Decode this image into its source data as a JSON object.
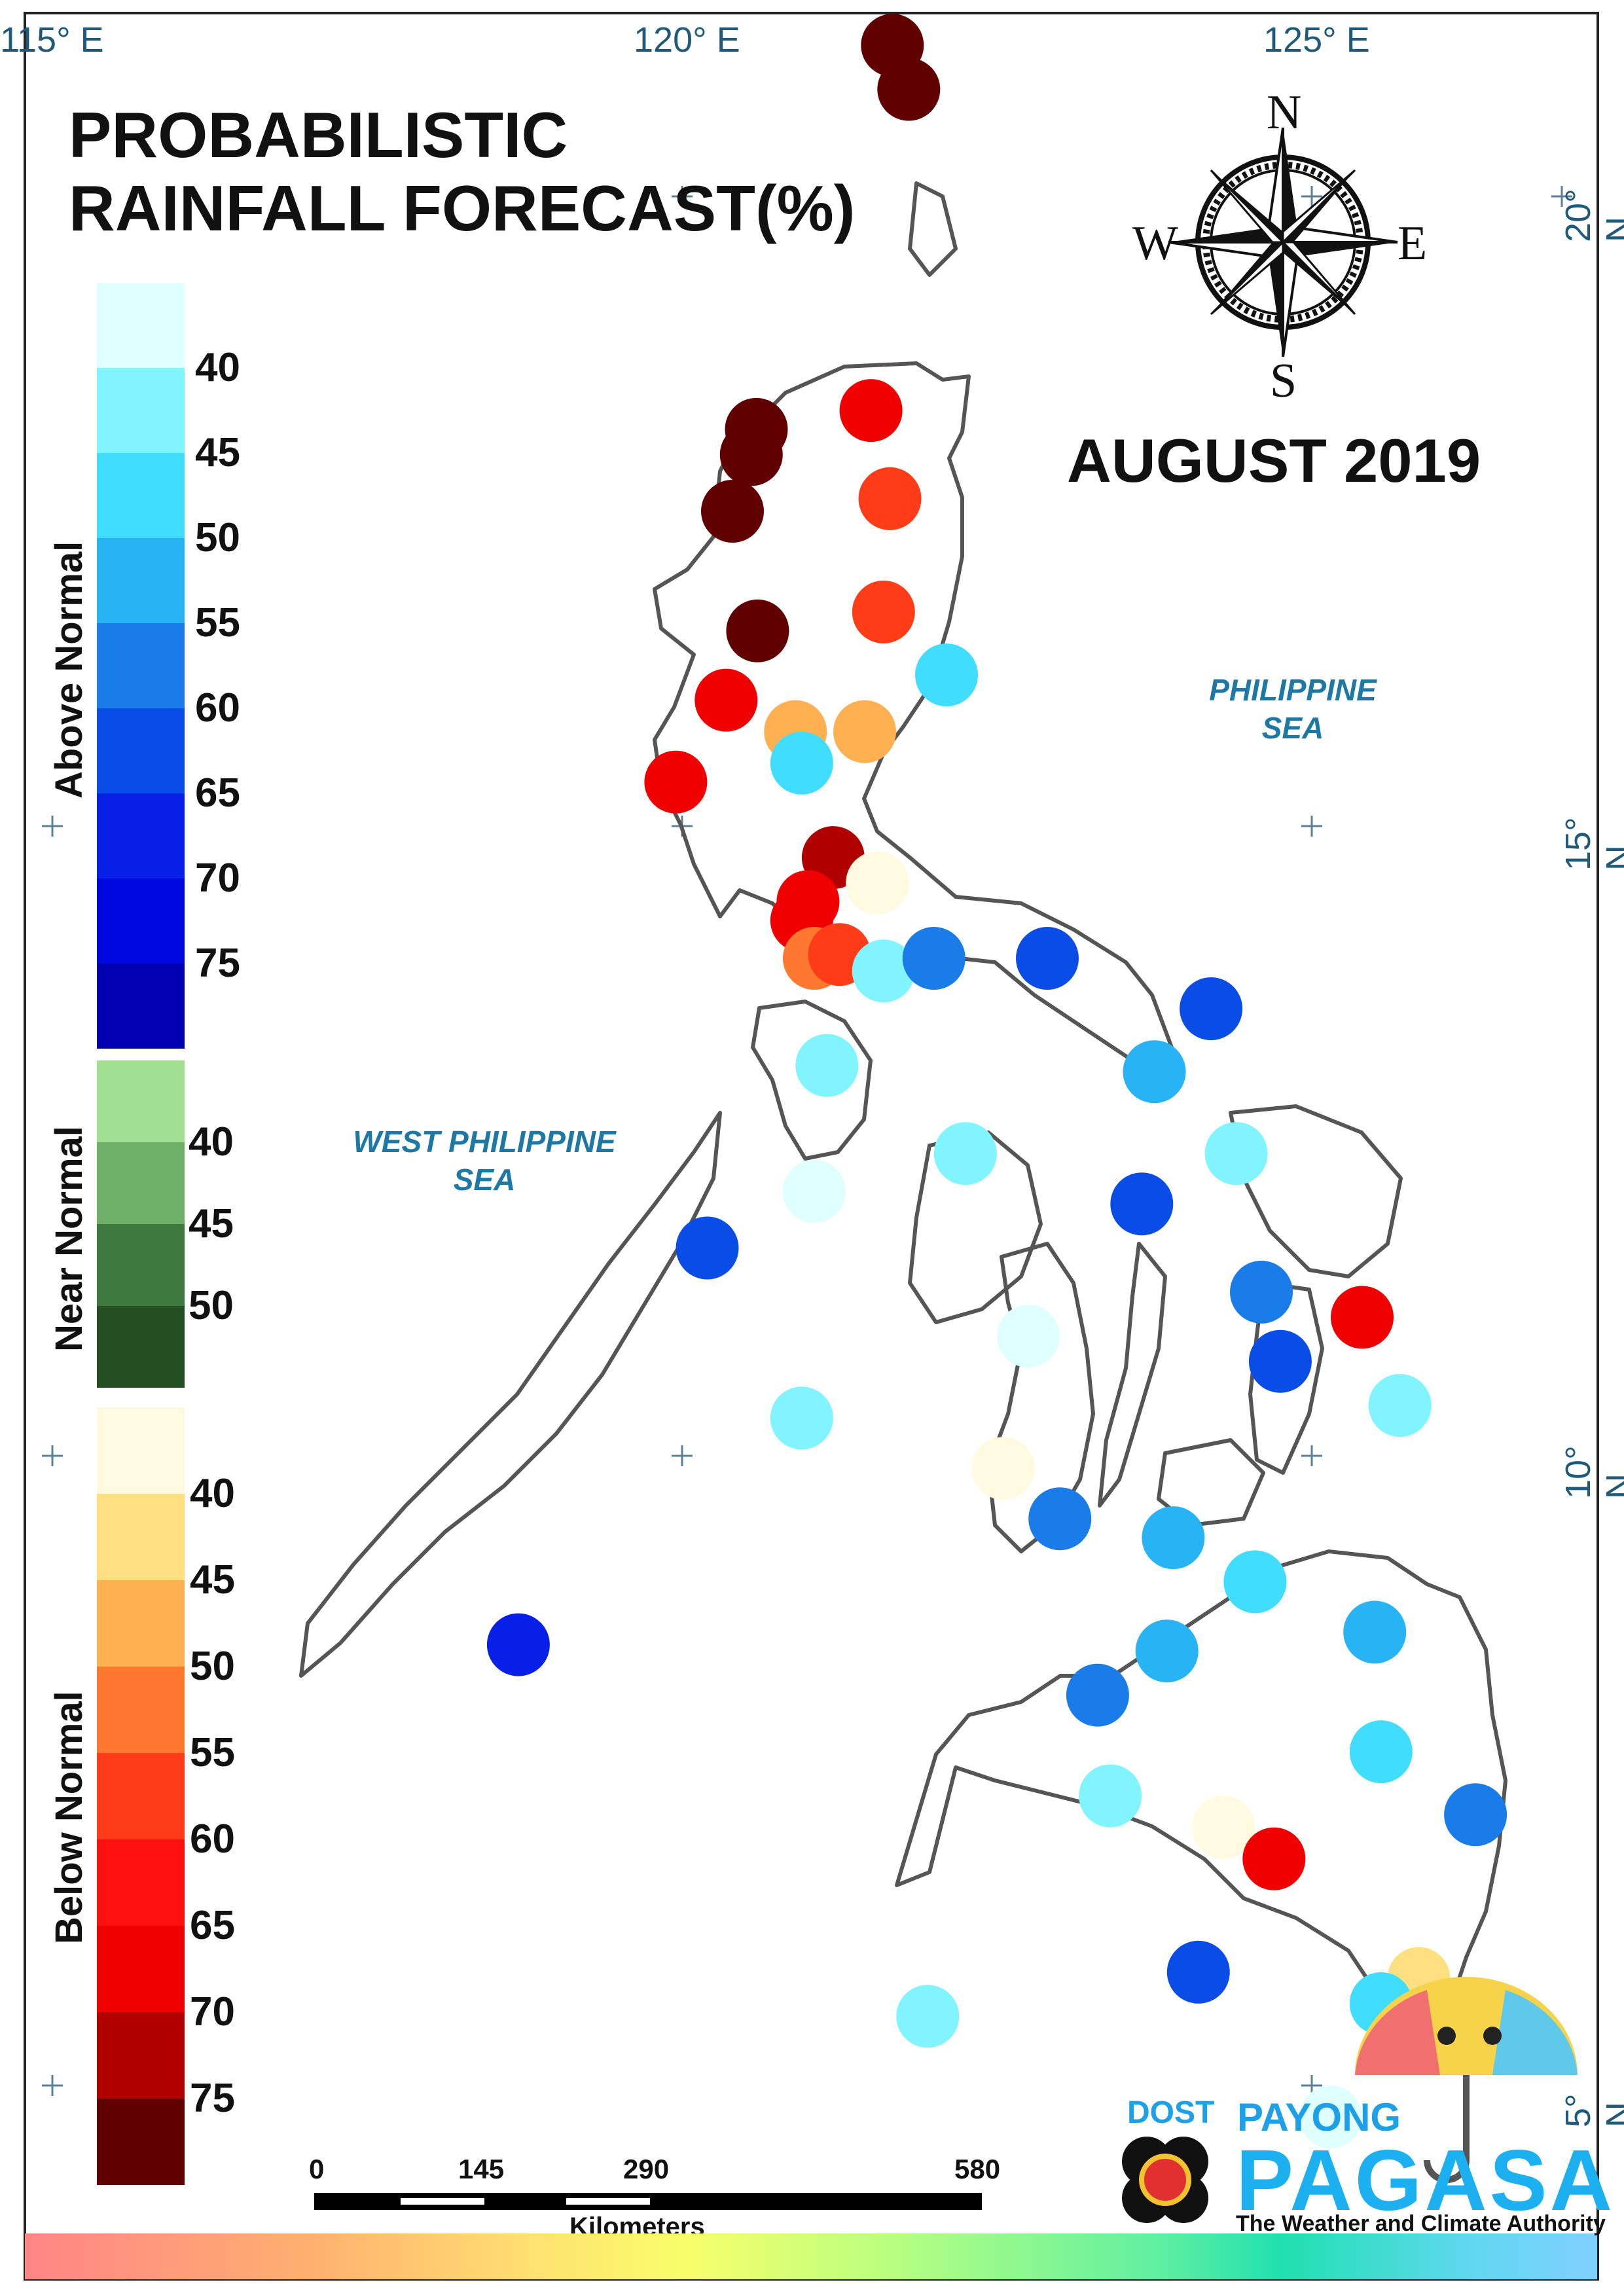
{
  "title": {
    "line1": "PROBABILISTIC",
    "line2": "RAINFALL FORECAST(%)"
  },
  "period": "AUGUST 2019",
  "longitude_labels": [
    "115° E",
    "120° E",
    "125° E"
  ],
  "latitude_labels": [
    "20° N",
    "15° N",
    "10° N",
    "5° N"
  ],
  "seas": {
    "philippine_sea": {
      "line1": "PHILIPPINE",
      "line2": "SEA"
    },
    "west_philippine_sea": {
      "line1": "WEST PHILIPPINE",
      "line2": "SEA"
    }
  },
  "compass": {
    "n": "N",
    "s": "S",
    "e": "E",
    "w": "W"
  },
  "legend": {
    "above": {
      "label": "Above Normal",
      "values": [
        "40",
        "45",
        "50",
        "55",
        "60",
        "65",
        "70",
        "75"
      ],
      "colors": [
        "#e0ffff",
        "#80f4ff",
        "#40ddff",
        "#28b4f4",
        "#1a7ce8",
        "#0a4ce6",
        "#0620e8",
        "#0008e0",
        "#0000b0"
      ]
    },
    "near": {
      "label": "Near Normal",
      "values": [
        "40",
        "45",
        "50"
      ],
      "colors": [
        "#a0e090",
        "#6eb068",
        "#3e7a40",
        "#224e22"
      ]
    },
    "below": {
      "label": "Below Normal",
      "values": [
        "40",
        "45",
        "50",
        "55",
        "60",
        "65",
        "70",
        "75"
      ],
      "colors": [
        "#fffae0",
        "#ffe080",
        "#ffb050",
        "#ff7830",
        "#ff3c18",
        "#ff1010",
        "#f00000",
        "#b00000",
        "#600000"
      ]
    }
  },
  "scale": {
    "ticks": [
      "0",
      "145",
      "290",
      "580"
    ],
    "caption": "Kilometers"
  },
  "logo": {
    "agency": "DOST",
    "brand_top": "PAYONG",
    "brand": "PAGASA",
    "tagline": "The Weather and Climate Authority"
  },
  "stations": [
    {
      "lon": 121.67,
      "lat": 21.2,
      "color": "#600000"
    },
    {
      "lon": 121.8,
      "lat": 20.85,
      "color": "#600000"
    },
    {
      "lon": 120.59,
      "lat": 18.15,
      "color": "#600000"
    },
    {
      "lon": 120.55,
      "lat": 17.95,
      "color": "#600000"
    },
    {
      "lon": 120.4,
      "lat": 17.5,
      "color": "#600000"
    },
    {
      "lon": 121.5,
      "lat": 18.3,
      "color": "#f00000"
    },
    {
      "lon": 121.65,
      "lat": 17.6,
      "color": "#ff3c18"
    },
    {
      "lon": 121.6,
      "lat": 16.7,
      "color": "#ff3c18"
    },
    {
      "lon": 122.1,
      "lat": 16.2,
      "color": "#40ddff"
    },
    {
      "lon": 120.6,
      "lat": 16.55,
      "color": "#600000"
    },
    {
      "lon": 120.35,
      "lat": 16.0,
      "color": "#f00000"
    },
    {
      "lon": 120.9,
      "lat": 15.75,
      "color": "#ffb050"
    },
    {
      "lon": 121.45,
      "lat": 15.75,
      "color": "#ffb050"
    },
    {
      "lon": 120.95,
      "lat": 15.5,
      "color": "#40ddff"
    },
    {
      "lon": 119.95,
      "lat": 15.35,
      "color": "#f00000"
    },
    {
      "lon": 121.2,
      "lat": 14.75,
      "color": "#b00000"
    },
    {
      "lon": 121.55,
      "lat": 14.55,
      "color": "#fffae0"
    },
    {
      "lon": 121.0,
      "lat": 14.4,
      "color": "#f00000"
    },
    {
      "lon": 120.95,
      "lat": 14.25,
      "color": "#f00000"
    },
    {
      "lon": 121.05,
      "lat": 13.95,
      "color": "#ff7830"
    },
    {
      "lon": 121.25,
      "lat": 13.98,
      "color": "#ff3c18"
    },
    {
      "lon": 121.6,
      "lat": 13.85,
      "color": "#80f4ff"
    },
    {
      "lon": 122.0,
      "lat": 13.95,
      "color": "#1a7ce8"
    },
    {
      "lon": 122.9,
      "lat": 13.95,
      "color": "#0a4ce6"
    },
    {
      "lon": 124.2,
      "lat": 13.55,
      "color": "#0a4ce6"
    },
    {
      "lon": 121.15,
      "lat": 13.1,
      "color": "#80f4ff"
    },
    {
      "lon": 123.75,
      "lat": 13.05,
      "color": "#28b4f4"
    },
    {
      "lon": 122.25,
      "lat": 12.4,
      "color": "#80f4ff"
    },
    {
      "lon": 121.05,
      "lat": 12.1,
      "color": "#e0ffff"
    },
    {
      "lon": 123.65,
      "lat": 12.0,
      "color": "#0a4ce6"
    },
    {
      "lon": 124.4,
      "lat": 12.4,
      "color": "#80f4ff"
    },
    {
      "lon": 120.2,
      "lat": 11.65,
      "color": "#0a4ce6"
    },
    {
      "lon": 124.6,
      "lat": 11.3,
      "color": "#1a7ce8"
    },
    {
      "lon": 125.4,
      "lat": 11.1,
      "color": "#f00000"
    },
    {
      "lon": 122.75,
      "lat": 10.95,
      "color": "#e0ffff"
    },
    {
      "lon": 124.75,
      "lat": 10.75,
      "color": "#0a4ce6"
    },
    {
      "lon": 125.7,
      "lat": 10.4,
      "color": "#80f4ff"
    },
    {
      "lon": 120.95,
      "lat": 10.3,
      "color": "#80f4ff"
    },
    {
      "lon": 122.55,
      "lat": 9.9,
      "color": "#fffae0"
    },
    {
      "lon": 123.0,
      "lat": 9.5,
      "color": "#1a7ce8"
    },
    {
      "lon": 123.9,
      "lat": 9.35,
      "color": "#28b4f4"
    },
    {
      "lon": 124.55,
      "lat": 9.0,
      "color": "#40ddff"
    },
    {
      "lon": 125.5,
      "lat": 8.6,
      "color": "#28b4f4"
    },
    {
      "lon": 118.7,
      "lat": 8.5,
      "color": "#0620e8"
    },
    {
      "lon": 123.85,
      "lat": 8.45,
      "color": "#28b4f4"
    },
    {
      "lon": 123.3,
      "lat": 8.1,
      "color": "#1a7ce8"
    },
    {
      "lon": 125.55,
      "lat": 7.65,
      "color": "#40ddff"
    },
    {
      "lon": 123.4,
      "lat": 7.3,
      "color": "#80f4ff"
    },
    {
      "lon": 124.3,
      "lat": 7.05,
      "color": "#fffae0"
    },
    {
      "lon": 124.7,
      "lat": 6.8,
      "color": "#f00000"
    },
    {
      "lon": 126.3,
      "lat": 7.15,
      "color": "#1a7ce8"
    },
    {
      "lon": 125.85,
      "lat": 5.85,
      "color": "#ffe080"
    },
    {
      "lon": 124.1,
      "lat": 5.9,
      "color": "#0a4ce6"
    },
    {
      "lon": 125.55,
      "lat": 5.65,
      "color": "#40ddff"
    },
    {
      "lon": 121.95,
      "lat": 5.55,
      "color": "#80f4ff"
    },
    {
      "lon": 125.15,
      "lat": 4.75,
      "color": "#e0ffff"
    }
  ]
}
